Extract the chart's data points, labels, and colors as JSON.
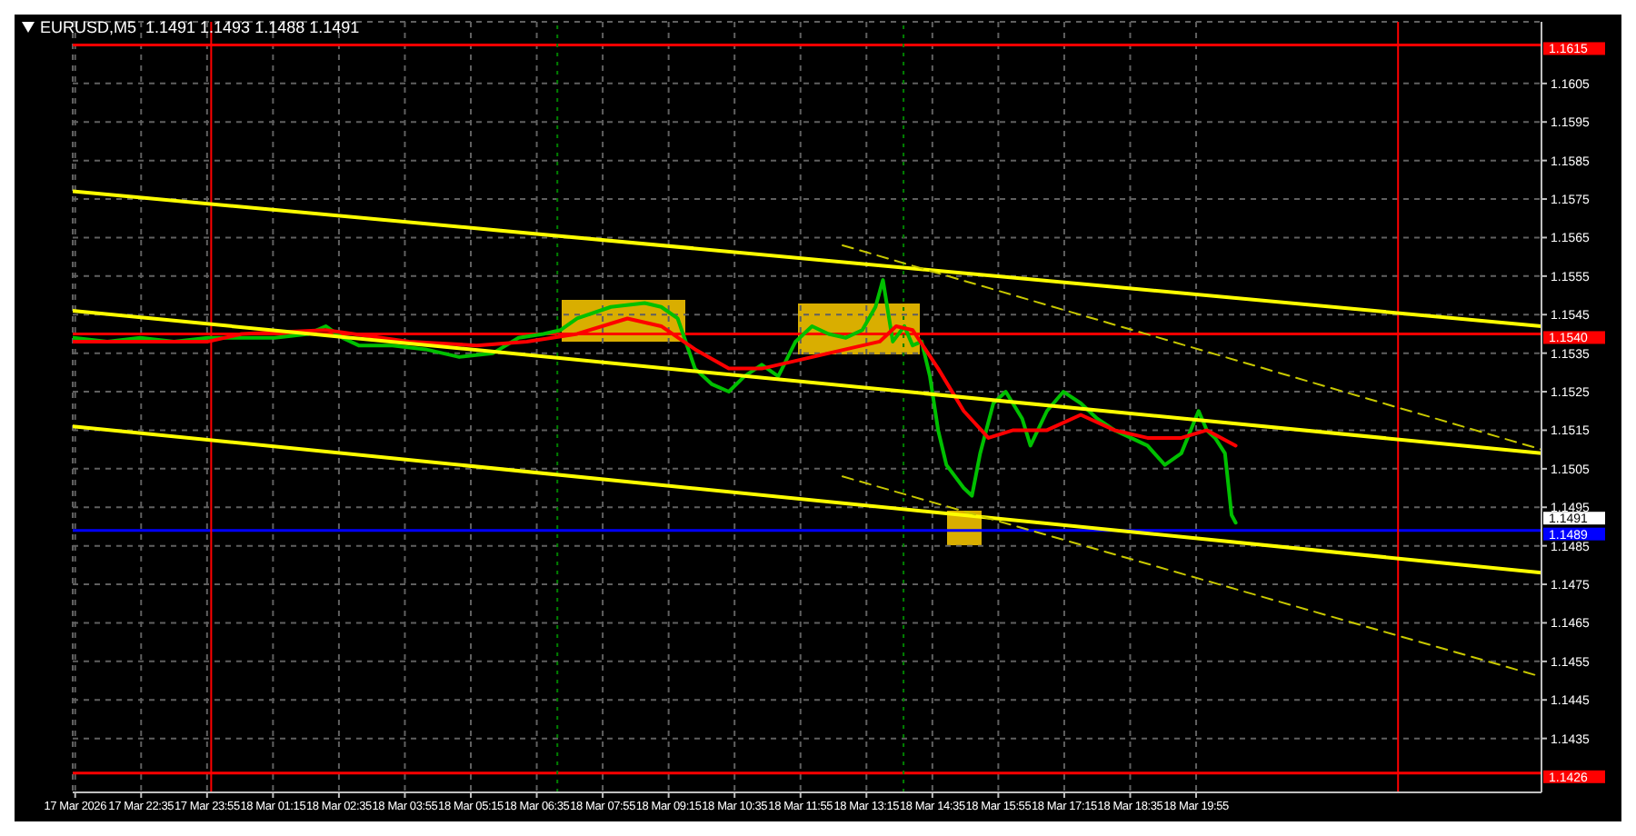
{
  "chart_data": {
    "type": "line",
    "title": "EURUSD,M5  1.1491 1.1493 1.1488 1.1491",
    "grid": true,
    "legend": false,
    "marker": "none",
    "xlim": [
      "2026-03-17T21:12",
      "2026-03-19T02:54"
    ],
    "ylim": [
      1.1421,
      1.1621
    ],
    "xticks": [
      {
        "value": "2026-03-17T21:15",
        "label": "17 Mar 2026"
      },
      {
        "value": "2026-03-17T22:35",
        "label": "17 Mar 22:35"
      },
      {
        "value": "2026-03-17T23:55",
        "label": "17 Mar 23:55"
      },
      {
        "value": "2026-03-18T01:15",
        "label": "18 Mar 01:15"
      },
      {
        "value": "2026-03-18T02:35",
        "label": "18 Mar 02:35"
      },
      {
        "value": "2026-03-18T03:55",
        "label": "18 Mar 03:55"
      },
      {
        "value": "2026-03-18T05:15",
        "label": "18 Mar 05:15"
      },
      {
        "value": "2026-03-18T06:35",
        "label": "18 Mar 06:35"
      },
      {
        "value": "2026-03-18T07:55",
        "label": "18 Mar 07:55"
      },
      {
        "value": "2026-03-18T09:15",
        "label": "18 Mar 09:15"
      },
      {
        "value": "2026-03-18T10:35",
        "label": "18 Mar 10:35"
      },
      {
        "value": "2026-03-18T11:55",
        "label": "18 Mar 11:55"
      },
      {
        "value": "2026-03-18T13:15",
        "label": "18 Mar 13:15"
      },
      {
        "value": "2026-03-18T14:35",
        "label": "18 Mar 14:35"
      },
      {
        "value": "2026-03-18T15:55",
        "label": "18 Mar 15:55"
      },
      {
        "value": "2026-03-18T17:15",
        "label": "18 Mar 17:15"
      },
      {
        "value": "2026-03-18T18:35",
        "label": "18 Mar 18:35"
      },
      {
        "value": "2026-03-18T19:55",
        "label": "18 Mar 19:55"
      }
    ],
    "yticks": [
      1.1435,
      1.1445,
      1.1455,
      1.1465,
      1.1475,
      1.1485,
      1.1495,
      1.1505,
      1.1515,
      1.1525,
      1.1535,
      1.1545,
      1.1555,
      1.1565,
      1.1575,
      1.1585,
      1.1595,
      1.1605
    ],
    "series": [
      {
        "color": "#00c000",
        "line_style": "solid",
        "x": [
          "2026-03-17T21:13",
          "2026-03-17T21:54",
          "2026-03-17T22:34",
          "2026-03-17T23:15",
          "2026-03-17T23:56",
          "2026-03-18T00:37",
          "2026-03-18T01:17",
          "2026-03-18T01:58",
          "2026-03-18T02:19",
          "2026-03-18T02:39",
          "2026-03-18T02:59",
          "2026-03-18T03:40",
          "2026-03-18T04:20",
          "2026-03-18T05:01",
          "2026-03-18T05:42",
          "2026-03-18T06:13",
          "2026-03-18T06:43",
          "2026-03-18T07:04",
          "2026-03-18T07:24",
          "2026-03-18T08:05",
          "2026-03-18T08:46",
          "2026-03-18T09:06",
          "2026-03-18T09:26",
          "2026-03-18T09:47",
          "2026-03-18T10:07",
          "2026-03-18T10:28",
          "2026-03-18T10:47",
          "2026-03-18T11:08",
          "2026-03-18T11:28",
          "2026-03-18T11:49",
          "2026-03-18T12:09",
          "2026-03-18T12:29",
          "2026-03-18T12:50",
          "2026-03-18T13:10",
          "2026-03-18T13:26",
          "2026-03-18T13:35",
          "2026-03-18T13:47",
          "2026-03-18T14:01",
          "2026-03-18T14:11",
          "2026-03-18T14:22",
          "2026-03-18T14:32",
          "2026-03-18T14:42",
          "2026-03-18T14:52",
          "2026-03-18T15:13",
          "2026-03-18T15:23",
          "2026-03-18T15:33",
          "2026-03-18T15:49",
          "2026-03-18T16:04",
          "2026-03-18T16:24",
          "2026-03-18T16:34",
          "2026-03-18T16:54",
          "2026-03-18T17:14",
          "2026-03-18T17:35",
          "2026-03-18T17:55",
          "2026-03-18T18:16",
          "2026-03-18T18:36",
          "2026-03-18T18:56",
          "2026-03-18T19:17",
          "2026-03-18T19:37",
          "2026-03-18T19:58",
          "2026-03-18T20:08",
          "2026-03-18T20:18",
          "2026-03-18T20:30",
          "2026-03-18T20:38",
          "2026-03-18T20:43"
        ],
        "values": [
          1.1539,
          1.1538,
          1.1539,
          1.1538,
          1.1539,
          1.1539,
          1.1539,
          1.154,
          1.1542,
          1.1539,
          1.1537,
          1.1537,
          1.1536,
          1.1534,
          1.1535,
          1.1539,
          1.154,
          1.1541,
          1.1544,
          1.1547,
          1.1548,
          1.1547,
          1.1544,
          1.1531,
          1.1527,
          1.1525,
          1.1529,
          1.1532,
          1.1529,
          1.1538,
          1.1542,
          1.154,
          1.1539,
          1.1541,
          1.1547,
          1.1554,
          1.1538,
          1.1542,
          1.1537,
          1.1538,
          1.1529,
          1.1515,
          1.1506,
          1.15,
          1.1498,
          1.1509,
          1.1522,
          1.1525,
          1.1518,
          1.1511,
          1.152,
          1.1525,
          1.1522,
          1.1518,
          1.1515,
          1.1513,
          1.1511,
          1.1506,
          1.1509,
          1.152,
          1.1515,
          1.1513,
          1.1509,
          1.1493,
          1.1491
        ]
      },
      {
        "color": "#ff0000",
        "line_style": "solid",
        "x": [
          "2026-03-17T21:13",
          "2026-03-17T23:56",
          "2026-03-18T00:37",
          "2026-03-18T02:19",
          "2026-03-18T04:00",
          "2026-03-18T05:22",
          "2026-03-18T06:23",
          "2026-03-18T07:24",
          "2026-03-18T08:25",
          "2026-03-18T09:06",
          "2026-03-18T09:47",
          "2026-03-18T10:28",
          "2026-03-18T11:08",
          "2026-03-18T11:49",
          "2026-03-18T12:50",
          "2026-03-18T13:31",
          "2026-03-18T13:51",
          "2026-03-18T14:11",
          "2026-03-18T14:42",
          "2026-03-18T15:13",
          "2026-03-18T15:43",
          "2026-03-18T16:13",
          "2026-03-18T16:54",
          "2026-03-18T17:35",
          "2026-03-18T18:16",
          "2026-03-18T18:56",
          "2026-03-18T19:37",
          "2026-03-18T20:08",
          "2026-03-18T20:43"
        ],
        "values": [
          1.1538,
          1.1538,
          1.154,
          1.1541,
          1.1538,
          1.1537,
          1.1538,
          1.154,
          1.1544,
          1.1542,
          1.1536,
          1.1531,
          1.1531,
          1.1533,
          1.1536,
          1.1538,
          1.1542,
          1.1541,
          1.1531,
          1.152,
          1.1513,
          1.1515,
          1.1515,
          1.1519,
          1.1515,
          1.1513,
          1.1513,
          1.1515,
          1.1511
        ]
      },
      {
        "color": "#ffff00",
        "line_style": "solid",
        "x": [
          "2026-03-17T21:12",
          "2026-03-19T02:54"
        ],
        "values": [
          1.1577,
          1.1542
        ]
      },
      {
        "color": "#ffff00",
        "line_style": "solid",
        "x": [
          "2026-03-17T21:12",
          "2026-03-19T02:54"
        ],
        "values": [
          1.1546,
          1.1509
        ]
      },
      {
        "color": "#ffff00",
        "line_style": "solid",
        "x": [
          "2026-03-17T21:12",
          "2026-03-19T02:54"
        ],
        "values": [
          1.1516,
          1.1478
        ]
      },
      {
        "color": "#c8c800",
        "line_style": "dashed",
        "x": [
          "2026-03-18T12:46",
          "2026-03-19T02:54"
        ],
        "values": [
          1.1563,
          1.151
        ]
      },
      {
        "color": "#c8c800",
        "line_style": "dashed",
        "x": [
          "2026-03-18T12:46",
          "2026-03-19T02:54"
        ],
        "values": [
          1.1503,
          1.1451
        ]
      }
    ],
    "ref_lines": [
      {
        "axis": "y",
        "value": 1.1615,
        "label": "1.1615",
        "color": "#ff0000"
      },
      {
        "axis": "y",
        "value": 1.154,
        "label": "1.1540",
        "color": "#ff0000"
      },
      {
        "axis": "y",
        "value": 1.1489,
        "label": "1.1489",
        "color": "#0000ff"
      },
      {
        "axis": "y",
        "value": 1.1426,
        "label": "1.1426",
        "color": "#ff0000"
      },
      {
        "axis": "x",
        "value": "2026-03-18T00:00",
        "label": null,
        "color": "#ff0000"
      },
      {
        "axis": "x",
        "value": "2026-03-19T00:00",
        "label": null,
        "color": "#ff0000"
      },
      {
        "axis": "x",
        "value": "2026-03-18T07:00",
        "label": null,
        "color": "#008000",
        "line_style": "dotted"
      },
      {
        "axis": "x",
        "value": "2026-03-18T14:00",
        "label": null,
        "color": "#008000",
        "line_style": "dotted"
      }
    ],
    "annotations": [
      "1.1491"
    ]
  }
}
